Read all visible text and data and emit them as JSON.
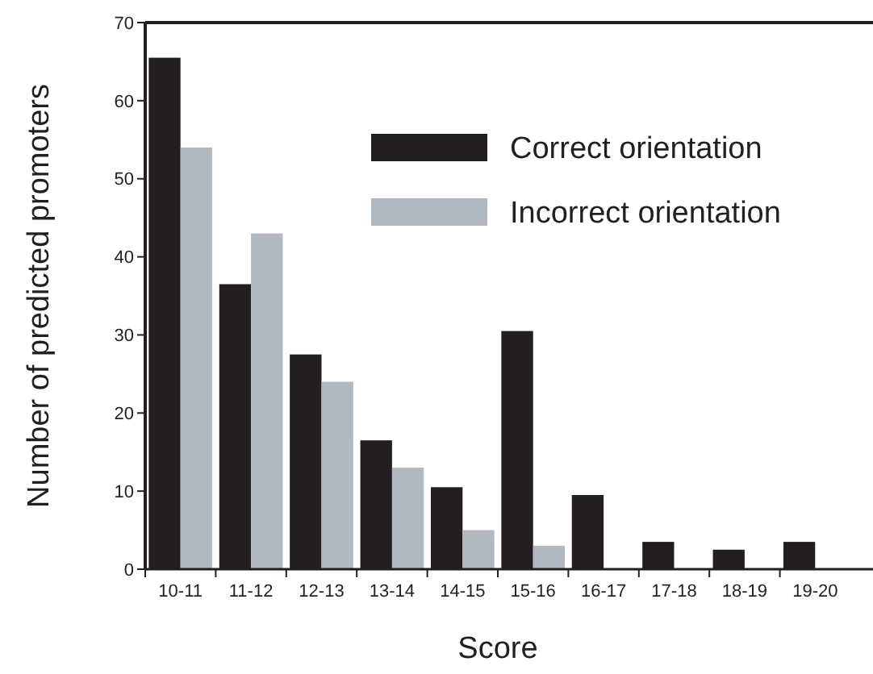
{
  "chart_data": {
    "type": "bar",
    "xlabel": "Score",
    "ylabel": "Number of predicted promoters",
    "categories": [
      "10-11",
      "11-12",
      "12-13",
      "13-14",
      "14-15",
      "15-16",
      "16-17",
      "17-18",
      "18-19",
      "19-20"
    ],
    "series": [
      {
        "name": "Correct orientation",
        "color": "#231f20",
        "values": [
          65.5,
          36.5,
          27.5,
          16.5,
          10.5,
          30.5,
          9.5,
          3.5,
          2.5,
          3.5
        ]
      },
      {
        "name": "Incorrect orientation",
        "color": "#b2b8c0",
        "values": [
          54,
          43,
          24,
          13,
          5,
          3,
          0,
          0,
          0,
          0
        ]
      }
    ],
    "ylim": [
      0,
      70
    ],
    "yticks": [
      0,
      10,
      20,
      30,
      40,
      50,
      60,
      70
    ],
    "grid": false,
    "legend": "top right"
  }
}
